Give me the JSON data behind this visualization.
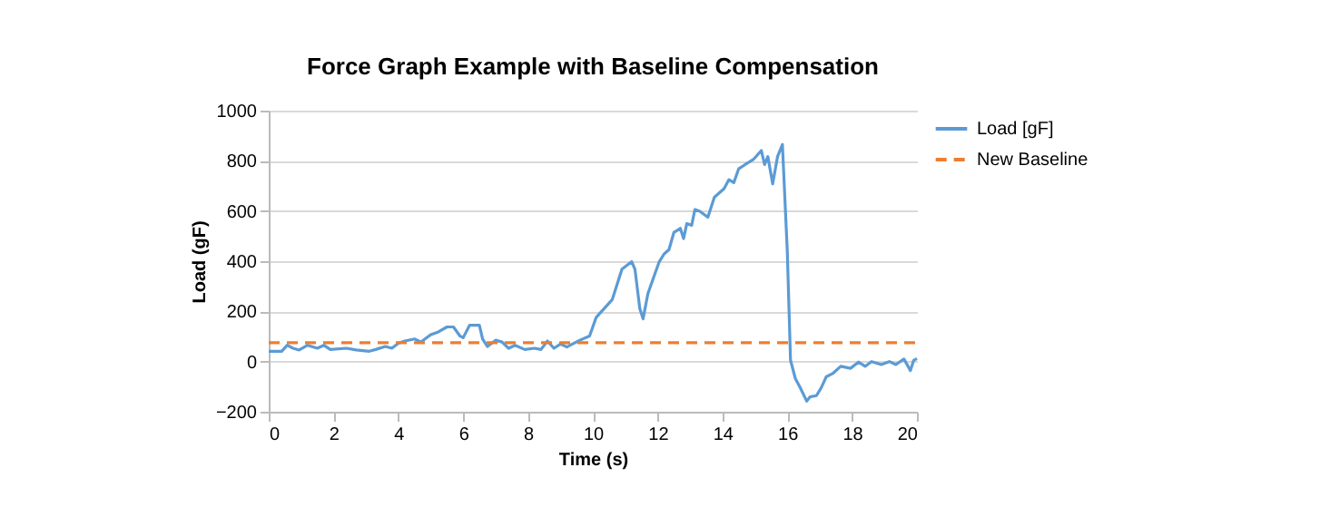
{
  "chart_data": {
    "type": "line",
    "title": "Force Graph Example with Baseline Compensation",
    "xlabel": "Time (s)",
    "ylabel": "Load (gF)",
    "xlim": [
      0,
      20
    ],
    "xticks": [
      0,
      2,
      4,
      6,
      8,
      10,
      12,
      14,
      16,
      18,
      20
    ],
    "ylim": [
      -200,
      1000
    ],
    "yticks": [
      -200,
      0,
      200,
      400,
      600,
      800,
      1000
    ],
    "grid": "y",
    "legend": "right",
    "series": [
      {
        "name": "Load [gF]",
        "color": "#5b9bd5",
        "line_style": "solid",
        "x": [
          0,
          0.4,
          0.57,
          0.75,
          0.94,
          1.2,
          1.5,
          1.7,
          1.9,
          2.4,
          2.7,
          3.1,
          3.3,
          3.6,
          3.8,
          4.0,
          4.2,
          4.5,
          4.7,
          5.0,
          5.2,
          5.5,
          5.7,
          5.9,
          6.0,
          6.2,
          6.5,
          6.6,
          6.75,
          7.0,
          7.2,
          7.4,
          7.6,
          7.9,
          8.2,
          8.4,
          8.6,
          8.8,
          9.0,
          9.2,
          9.3,
          9.6,
          9.9,
          10.1,
          10.2,
          10.6,
          10.9,
          11.2,
          11.3,
          11.45,
          11.55,
          11.7,
          11.9,
          12.05,
          12.2,
          12.35,
          12.5,
          12.7,
          12.8,
          12.9,
          13.05,
          13.15,
          13.3,
          13.55,
          13.75,
          14.05,
          14.2,
          14.35,
          14.5,
          14.7,
          14.95,
          15.2,
          15.3,
          15.4,
          15.55,
          15.7,
          15.85,
          16.0,
          16.1,
          16.25,
          16.4,
          16.6,
          16.7,
          16.9,
          17.05,
          17.2,
          17.4,
          17.65,
          17.95,
          18.2,
          18.4,
          18.6,
          18.9,
          19.15,
          19.35,
          19.6,
          19.8,
          19.9,
          20.0
        ],
        "values": [
          41,
          41,
          65,
          53,
          46,
          65,
          53,
          65,
          48,
          53,
          46,
          41,
          48,
          60,
          53,
          73,
          82,
          90,
          78,
          107,
          116,
          138,
          138,
          102,
          95,
          145,
          145,
          90,
          60,
          85,
          78,
          53,
          65,
          48,
          53,
          48,
          82,
          53,
          70,
          58,
          65,
          85,
          102,
          175,
          190,
          247,
          368,
          398,
          368,
          211,
          170,
          271,
          344,
          398,
          429,
          446,
          514,
          531,
          490,
          550,
          543,
          606,
          599,
          575,
          655,
          689,
          725,
          713,
          768,
          785,
          805,
          841,
          785,
          817,
          708,
          817,
          865,
          441,
          5,
          -68,
          -104,
          -158,
          -141,
          -136,
          -104,
          -61,
          -48,
          -19,
          -27,
          -2,
          -19,
          0,
          -12,
          0,
          -12,
          10,
          -36,
          5,
          12
        ]
      },
      {
        "name": "New Baseline",
        "color": "#ed7d31",
        "line_style": "dashed",
        "x": [
          0,
          20
        ],
        "values": [
          75,
          75
        ]
      }
    ]
  }
}
